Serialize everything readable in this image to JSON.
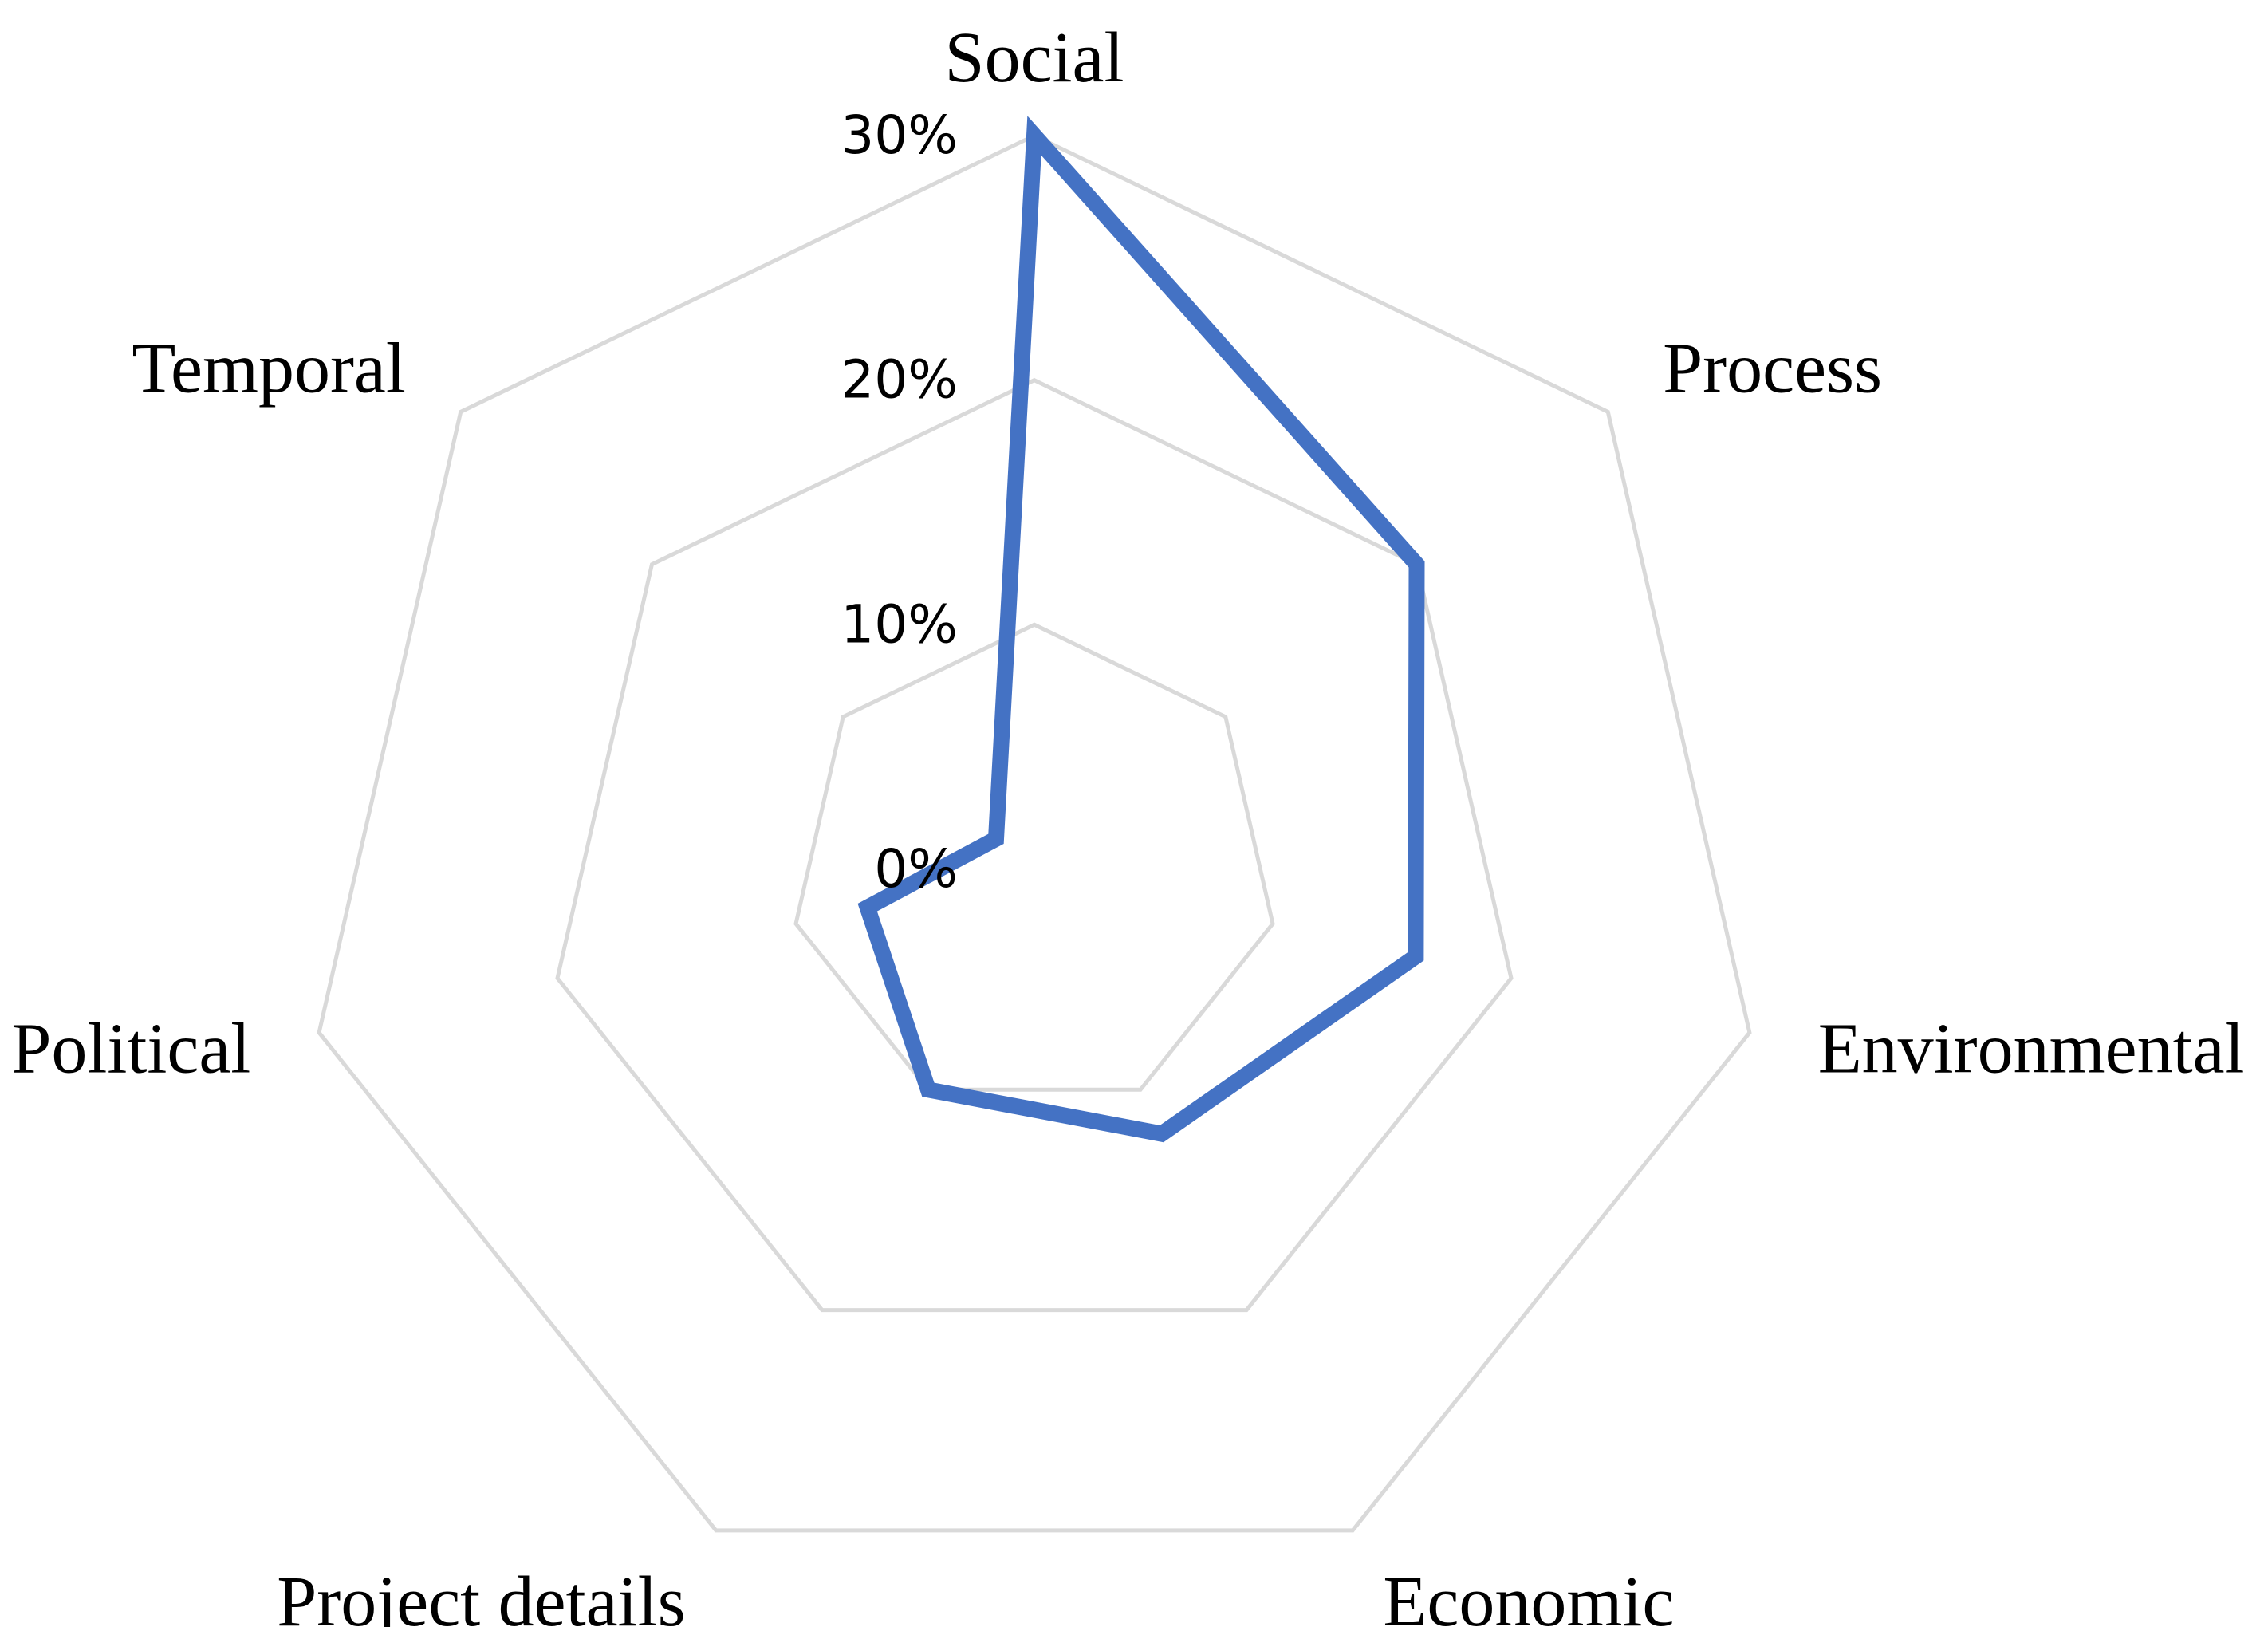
{
  "chart_data": {
    "type": "radar",
    "categories": [
      "Social",
      "Process",
      "Environmental",
      "Economic",
      "Project details",
      "Political",
      "Temporal"
    ],
    "series": [
      {
        "name": "",
        "values": [
          30,
          20,
          16,
          12,
          10,
          7,
          2
        ]
      }
    ],
    "r_ticks": [
      0,
      10,
      20,
      30
    ],
    "tick_labels": [
      "0%",
      "10%",
      "20%",
      "30%"
    ],
    "rlim": [
      0,
      30
    ],
    "unit": "%",
    "grid": true,
    "legend": "none",
    "colors": {
      "series": "#4472c4",
      "grid": "#d9d9d9",
      "text": "#000000"
    }
  }
}
